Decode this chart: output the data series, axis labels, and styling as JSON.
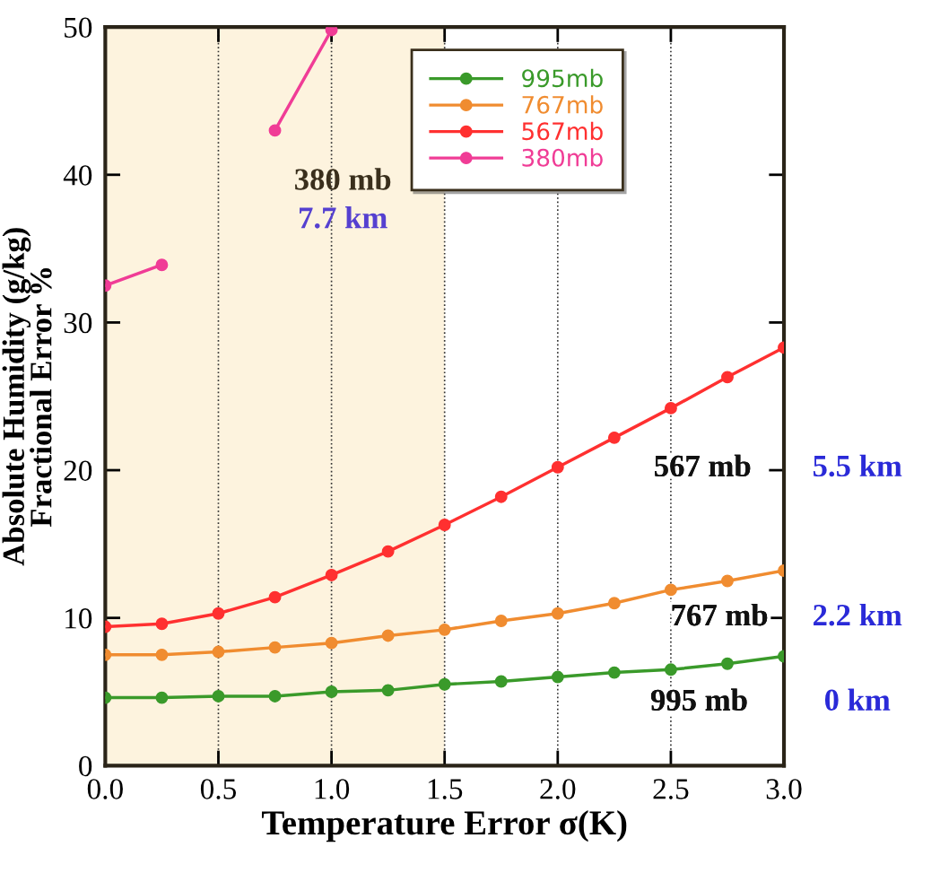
{
  "chart_data": {
    "type": "line",
    "xlabel": "Temperature Error σ(K)",
    "ylabel": "Absolute Humidity (g/kg)\nFractional Error %",
    "x": [
      0,
      0.25,
      0.5,
      0.75,
      1.0,
      1.25,
      1.5,
      1.75,
      2.0,
      2.25,
      2.5,
      2.75,
      3.0
    ],
    "series": [
      {
        "name": "995mb",
        "color": "#3a9a2a",
        "values": [
          4.6,
          4.6,
          4.7,
          4.7,
          5.0,
          5.1,
          5.5,
          5.7,
          6.0,
          6.3,
          6.5,
          6.9,
          7.4
        ]
      },
      {
        "name": "767mb",
        "color": "#f08c30",
        "values": [
          7.5,
          7.5,
          7.7,
          8.0,
          8.3,
          8.8,
          9.2,
          9.8,
          10.3,
          11.0,
          11.9,
          12.5,
          13.2
        ]
      },
      {
        "name": "567mb",
        "color": "#ff3030",
        "values": [
          9.4,
          9.6,
          10.3,
          11.4,
          12.9,
          14.5,
          16.3,
          18.2,
          20.2,
          22.2,
          24.2,
          26.3,
          28.3
        ]
      },
      {
        "name": "380mb",
        "color": "#f03c96",
        "values": [
          32.5,
          33.9,
          null,
          43.0,
          49.8,
          null,
          null,
          null,
          null,
          null,
          null,
          null,
          null
        ]
      }
    ],
    "xlim": [
      0,
      3.0
    ],
    "ylim": [
      0,
      50
    ],
    "xticks": [
      {
        "value": 0,
        "label": "0.0"
      },
      {
        "value": 0.5,
        "label": "0.5"
      },
      {
        "value": 1.0,
        "label": "1.0"
      },
      {
        "value": 1.5,
        "label": "1.5"
      },
      {
        "value": 2.0,
        "label": "2.0"
      },
      {
        "value": 2.5,
        "label": "2.5"
      },
      {
        "value": 3.0,
        "label": "3.0"
      }
    ],
    "yticks": [
      0,
      10,
      20,
      30,
      40,
      50
    ],
    "bands": [
      {
        "axis": "x",
        "from": 0,
        "to": 1.5,
        "color": "#fdf3de"
      }
    ],
    "annotations": [
      "380 mb",
      "7.7 km",
      "567 mb",
      "5.5 km",
      "767 mb",
      "2.2 km",
      "995 mb",
      "0 km"
    ],
    "grid": "x",
    "legend": "top right",
    "marker": "circle",
    "line_style": "solid"
  }
}
